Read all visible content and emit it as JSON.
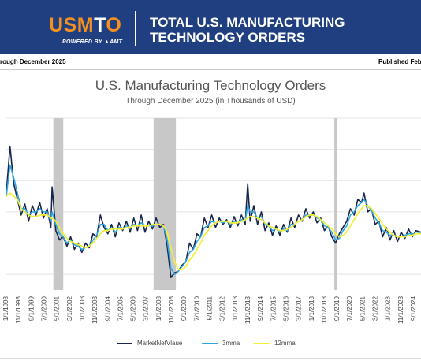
{
  "header": {
    "logo_part1": "USM",
    "logo_part2": "T",
    "logo_part3": "O",
    "powered_by": "POWERED BY ▲AMT",
    "title_line1": "TOTAL U.S. MANUFACTURING",
    "title_line2": "TECHNOLOGY ORDERS"
  },
  "sub_bar": {
    "left_text": "rough December 2025",
    "right_text": "Published Feb"
  },
  "colors": {
    "header_bg": "#1f3f80",
    "accent_orange": "#f5901e",
    "recession_shade": "#c8c8c8",
    "market_line": "#16264f",
    "mma3_line": "#2ea7e0",
    "mma12_line": "#f2ef3a"
  },
  "chart_data": {
    "type": "line",
    "title": "U.S. Manufacturing Technology Orders",
    "subtitle": "Through December 2025 (in Thousands of USD)",
    "x_tick_labels": [
      "1/1/1998",
      "11/1/1998",
      "9/1/1999",
      "7/1/2000",
      "5/1/2001",
      "3/1/2002",
      "1/1/2003",
      "11/1/2003",
      "9/1/2004",
      "7/1/2005",
      "5/1/2006",
      "3/1/2007",
      "1/1/2008",
      "11/1/2008",
      "9/1/2009",
      "7/1/2010",
      "5/1/2011",
      "3/1/2012",
      "1/1/2013",
      "11/1/2013",
      "9/1/2014",
      "7/1/2015",
      "5/1/2016",
      "3/1/2017",
      "1/1/2018",
      "11/1/2018",
      "9/1/2019",
      "7/1/2020",
      "5/1/2021",
      "3/1/2022",
      "1/1/2023",
      "11/1/2023",
      "9/1/2024"
    ],
    "x_range": [
      "1998-01",
      "2025-12"
    ],
    "grid": "horizontal",
    "legend_position": "bottom",
    "recession_periods": [
      [
        "2001-03",
        "2001-11"
      ],
      [
        "2007-12",
        "2009-06"
      ],
      [
        "2020-02",
        "2020-04"
      ]
    ],
    "series_points": [
      {
        "date": "1998-01",
        "market": 52,
        "mma3": 50,
        "mma12": 50
      },
      {
        "date": "1998-04",
        "market": 82,
        "mma3": 70,
        "mma12": 52
      },
      {
        "date": "1998-07",
        "market": 58,
        "mma3": 62,
        "mma12": 50
      },
      {
        "date": "1998-10",
        "market": 48,
        "mma3": 52,
        "mma12": 48
      },
      {
        "date": "1999-01",
        "market": 38,
        "mma3": 42,
        "mma12": 42
      },
      {
        "date": "1999-04",
        "market": 45,
        "mma3": 42,
        "mma12": 40
      },
      {
        "date": "1999-07",
        "market": 34,
        "mma3": 38,
        "mma12": 38
      },
      {
        "date": "1999-10",
        "market": 44,
        "mma3": 40,
        "mma12": 37
      },
      {
        "date": "2000-01",
        "market": 38,
        "mma3": 40,
        "mma12": 37
      },
      {
        "date": "2000-04",
        "market": 46,
        "mma3": 42,
        "mma12": 38
      },
      {
        "date": "2000-07",
        "market": 36,
        "mma3": 40,
        "mma12": 38
      },
      {
        "date": "2000-10",
        "market": 42,
        "mma3": 40,
        "mma12": 38
      },
      {
        "date": "2001-01",
        "market": 30,
        "mma3": 34,
        "mma12": 36
      },
      {
        "date": "2001-02",
        "market": 56,
        "mma3": 40,
        "mma12": 36
      },
      {
        "date": "2001-05",
        "market": 28,
        "mma3": 32,
        "mma12": 34
      },
      {
        "date": "2001-08",
        "market": 22,
        "mma3": 26,
        "mma12": 30
      },
      {
        "date": "2001-11",
        "market": 24,
        "mma3": 24,
        "mma12": 26
      },
      {
        "date": "2002-02",
        "market": 18,
        "mma3": 20,
        "mma12": 23
      },
      {
        "date": "2002-05",
        "market": 24,
        "mma3": 22,
        "mma12": 21
      },
      {
        "date": "2002-08",
        "market": 16,
        "mma3": 19,
        "mma12": 20
      },
      {
        "date": "2002-11",
        "market": 20,
        "mma3": 18,
        "mma12": 19
      },
      {
        "date": "2003-02",
        "market": 14,
        "mma3": 16,
        "mma12": 18
      },
      {
        "date": "2003-05",
        "market": 20,
        "mma3": 17,
        "mma12": 17
      },
      {
        "date": "2003-08",
        "market": 17,
        "mma3": 18,
        "mma12": 18
      },
      {
        "date": "2003-11",
        "market": 26,
        "mma3": 22,
        "mma12": 20
      },
      {
        "date": "2004-02",
        "market": 24,
        "mma3": 25,
        "mma12": 23
      },
      {
        "date": "2004-05",
        "market": 38,
        "mma3": 32,
        "mma12": 26
      },
      {
        "date": "2004-08",
        "market": 30,
        "mma3": 32,
        "mma12": 28
      },
      {
        "date": "2004-11",
        "market": 26,
        "mma3": 28,
        "mma12": 28
      },
      {
        "date": "2005-02",
        "market": 32,
        "mma3": 30,
        "mma12": 29
      },
      {
        "date": "2005-05",
        "market": 24,
        "mma3": 27,
        "mma12": 29
      },
      {
        "date": "2005-08",
        "market": 33,
        "mma3": 30,
        "mma12": 29
      },
      {
        "date": "2005-11",
        "market": 28,
        "mma3": 29,
        "mma12": 29
      },
      {
        "date": "2006-02",
        "market": 34,
        "mma3": 31,
        "mma12": 30
      },
      {
        "date": "2006-05",
        "market": 27,
        "mma3": 30,
        "mma12": 30
      },
      {
        "date": "2006-08",
        "market": 36,
        "mma3": 32,
        "mma12": 31
      },
      {
        "date": "2006-11",
        "market": 28,
        "mma3": 31,
        "mma12": 31
      },
      {
        "date": "2007-02",
        "market": 38,
        "mma3": 33,
        "mma12": 31
      },
      {
        "date": "2007-05",
        "market": 27,
        "mma3": 31,
        "mma12": 31
      },
      {
        "date": "2007-08",
        "market": 34,
        "mma3": 31,
        "mma12": 31
      },
      {
        "date": "2007-11",
        "market": 29,
        "mma3": 31,
        "mma12": 32
      },
      {
        "date": "2008-02",
        "market": 36,
        "mma3": 32,
        "mma12": 32
      },
      {
        "date": "2008-05",
        "market": 30,
        "mma3": 32,
        "mma12": 32
      },
      {
        "date": "2008-08",
        "market": 32,
        "mma3": 31,
        "mma12": 31
      },
      {
        "date": "2008-11",
        "market": 18,
        "mma3": 22,
        "mma12": 27
      },
      {
        "date": "2009-02",
        "market": -2,
        "mma3": 4,
        "mma12": 17
      },
      {
        "date": "2009-05",
        "market": 1,
        "mma3": 0,
        "mma12": 8
      },
      {
        "date": "2009-08",
        "market": 2,
        "mma3": 2,
        "mma12": 3
      },
      {
        "date": "2009-11",
        "market": 6,
        "mma3": 5,
        "mma12": 3
      },
      {
        "date": "2010-02",
        "market": 8,
        "mma3": 8,
        "mma12": 5
      },
      {
        "date": "2010-05",
        "market": 20,
        "mma3": 14,
        "mma12": 9
      },
      {
        "date": "2010-08",
        "market": 16,
        "mma3": 16,
        "mma12": 12
      },
      {
        "date": "2010-11",
        "market": 26,
        "mma3": 21,
        "mma12": 16
      },
      {
        "date": "2011-02",
        "market": 24,
        "mma3": 24,
        "mma12": 20
      },
      {
        "date": "2011-05",
        "market": 36,
        "mma3": 30,
        "mma12": 25
      },
      {
        "date": "2011-08",
        "market": 30,
        "mma3": 31,
        "mma12": 28
      },
      {
        "date": "2011-11",
        "market": 38,
        "mma3": 34,
        "mma12": 31
      },
      {
        "date": "2012-02",
        "market": 30,
        "mma3": 33,
        "mma12": 33
      },
      {
        "date": "2012-05",
        "market": 36,
        "mma3": 34,
        "mma12": 34
      },
      {
        "date": "2012-08",
        "market": 32,
        "mma3": 33,
        "mma12": 34
      },
      {
        "date": "2012-11",
        "market": 35,
        "mma3": 34,
        "mma12": 34
      },
      {
        "date": "2013-02",
        "market": 30,
        "mma3": 32,
        "mma12": 33
      },
      {
        "date": "2013-05",
        "market": 37,
        "mma3": 34,
        "mma12": 33
      },
      {
        "date": "2013-08",
        "market": 31,
        "mma3": 33,
        "mma12": 33
      },
      {
        "date": "2013-11",
        "market": 38,
        "mma3": 35,
        "mma12": 34
      },
      {
        "date": "2014-02",
        "market": 32,
        "mma3": 34,
        "mma12": 35
      },
      {
        "date": "2014-04",
        "market": 58,
        "mma3": 44,
        "mma12": 36
      },
      {
        "date": "2014-06",
        "market": 34,
        "mma3": 40,
        "mma12": 37
      },
      {
        "date": "2014-09",
        "market": 44,
        "mma3": 40,
        "mma12": 37
      },
      {
        "date": "2014-12",
        "market": 32,
        "mma3": 36,
        "mma12": 36
      },
      {
        "date": "2015-03",
        "market": 40,
        "mma3": 37,
        "mma12": 35
      },
      {
        "date": "2015-06",
        "market": 28,
        "mma3": 32,
        "mma12": 33
      },
      {
        "date": "2015-09",
        "market": 33,
        "mma3": 31,
        "mma12": 31
      },
      {
        "date": "2015-12",
        "market": 25,
        "mma3": 28,
        "mma12": 30
      },
      {
        "date": "2016-03",
        "market": 31,
        "mma3": 29,
        "mma12": 29
      },
      {
        "date": "2016-06",
        "market": 25,
        "mma3": 27,
        "mma12": 28
      },
      {
        "date": "2016-09",
        "market": 32,
        "mma3": 29,
        "mma12": 28
      },
      {
        "date": "2016-12",
        "market": 27,
        "mma3": 28,
        "mma12": 29
      },
      {
        "date": "2017-03",
        "market": 36,
        "mma3": 32,
        "mma12": 30
      },
      {
        "date": "2017-06",
        "market": 30,
        "mma3": 32,
        "mma12": 32
      },
      {
        "date": "2017-09",
        "market": 38,
        "mma3": 34,
        "mma12": 34
      },
      {
        "date": "2017-12",
        "market": 34,
        "mma3": 35,
        "mma12": 35
      },
      {
        "date": "2018-03",
        "market": 42,
        "mma3": 38,
        "mma12": 37
      },
      {
        "date": "2018-06",
        "market": 36,
        "mma3": 38,
        "mma12": 38
      },
      {
        "date": "2018-09",
        "market": 40,
        "mma3": 38,
        "mma12": 38
      },
      {
        "date": "2018-12",
        "market": 33,
        "mma3": 36,
        "mma12": 37
      },
      {
        "date": "2019-03",
        "market": 36,
        "mma3": 35,
        "mma12": 35
      },
      {
        "date": "2019-06",
        "market": 28,
        "mma3": 31,
        "mma12": 33
      },
      {
        "date": "2019-09",
        "market": 31,
        "mma3": 30,
        "mma12": 31
      },
      {
        "date": "2019-12",
        "market": 24,
        "mma3": 27,
        "mma12": 29
      },
      {
        "date": "2020-03",
        "market": 20,
        "mma3": 22,
        "mma12": 26
      },
      {
        "date": "2020-06",
        "market": 26,
        "mma3": 23,
        "mma12": 24
      },
      {
        "date": "2020-09",
        "market": 30,
        "mma3": 28,
        "mma12": 25
      },
      {
        "date": "2020-12",
        "market": 34,
        "mma3": 31,
        "mma12": 27
      },
      {
        "date": "2021-03",
        "market": 42,
        "mma3": 38,
        "mma12": 31
      },
      {
        "date": "2021-06",
        "market": 38,
        "mma3": 40,
        "mma12": 35
      },
      {
        "date": "2021-09",
        "market": 48,
        "mma3": 44,
        "mma12": 39
      },
      {
        "date": "2021-12",
        "market": 46,
        "mma3": 46,
        "mma12": 42
      },
      {
        "date": "2022-02",
        "market": 52,
        "mma3": 48,
        "mma12": 44
      },
      {
        "date": "2022-05",
        "market": 40,
        "mma3": 44,
        "mma12": 44
      },
      {
        "date": "2022-08",
        "market": 42,
        "mma3": 41,
        "mma12": 42
      },
      {
        "date": "2022-11",
        "market": 32,
        "mma3": 36,
        "mma12": 39
      },
      {
        "date": "2023-02",
        "market": 34,
        "mma3": 33,
        "mma12": 36
      },
      {
        "date": "2023-05",
        "market": 24,
        "mma3": 28,
        "mma12": 32
      },
      {
        "date": "2023-08",
        "market": 30,
        "mma3": 27,
        "mma12": 29
      },
      {
        "date": "2023-11",
        "market": 22,
        "mma3": 25,
        "mma12": 27
      },
      {
        "date": "2024-02",
        "market": 28,
        "mma3": 25,
        "mma12": 25
      },
      {
        "date": "2024-05",
        "market": 21,
        "mma3": 24,
        "mma12": 24
      },
      {
        "date": "2024-08",
        "market": 27,
        "mma3": 24,
        "mma12": 24
      },
      {
        "date": "2024-11",
        "market": 23,
        "mma3": 25,
        "mma12": 24
      },
      {
        "date": "2025-02",
        "market": 29,
        "mma3": 26,
        "mma12": 25
      },
      {
        "date": "2025-05",
        "market": 24,
        "mma3": 26,
        "mma12": 25
      },
      {
        "date": "2025-08",
        "market": 28,
        "mma3": 26,
        "mma12": 26
      },
      {
        "date": "2025-12",
        "market": 27,
        "mma3": 27,
        "mma12": 26
      }
    ],
    "y_range": [
      -10,
      100
    ],
    "y_grid_lines": [
      0,
      20,
      40,
      60,
      80,
      100
    ]
  },
  "legend": {
    "series1": "MarketNetVlaue",
    "series2": "3mma",
    "series3": "12mma"
  }
}
